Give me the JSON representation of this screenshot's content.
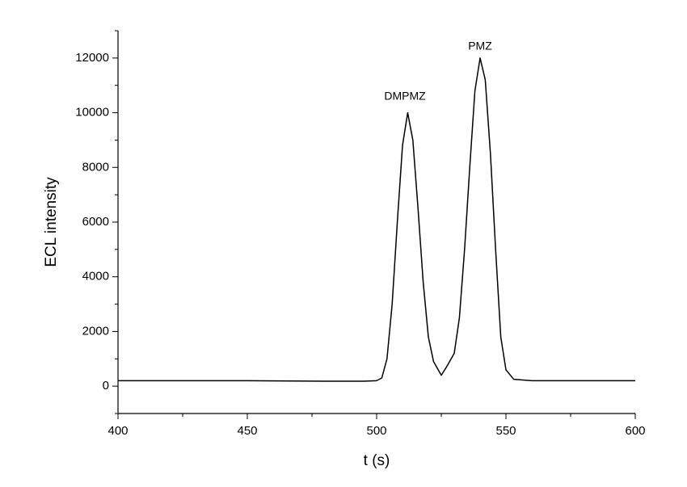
{
  "chart_data": {
    "type": "line",
    "x_label": "t (s)",
    "y_label": "ECL intensity",
    "annotations": [
      "DMPMZ",
      "PMZ"
    ],
    "xlim": [
      400,
      600
    ],
    "xticks": [
      400,
      450,
      500,
      550,
      600
    ],
    "xminorticks": [
      425,
      475,
      525,
      575
    ],
    "ylim": [
      -1000,
      13000
    ],
    "yticks": [
      0,
      2000,
      4000,
      6000,
      8000,
      10000,
      12000
    ],
    "yminorticks": [
      -1000,
      1000,
      3000,
      5000,
      7000,
      9000,
      11000,
      13000
    ],
    "series": [
      {
        "color": "#000000",
        "x": [
          400,
          450,
          480,
          495,
          500,
          502,
          504,
          506,
          508,
          510,
          512,
          514,
          516,
          518,
          520,
          522,
          525,
          527,
          530,
          532,
          534,
          536,
          538,
          540,
          542,
          544,
          546,
          548,
          550,
          553,
          560,
          600
        ],
        "values": [
          200,
          200,
          180,
          180,
          200,
          300,
          1000,
          3000,
          6000,
          8800,
          10000,
          9000,
          6500,
          3800,
          1800,
          900,
          400,
          700,
          1200,
          2500,
          5000,
          8000,
          10800,
          12000,
          11200,
          8500,
          5000,
          1800,
          600,
          250,
          200,
          200
        ]
      }
    ]
  }
}
